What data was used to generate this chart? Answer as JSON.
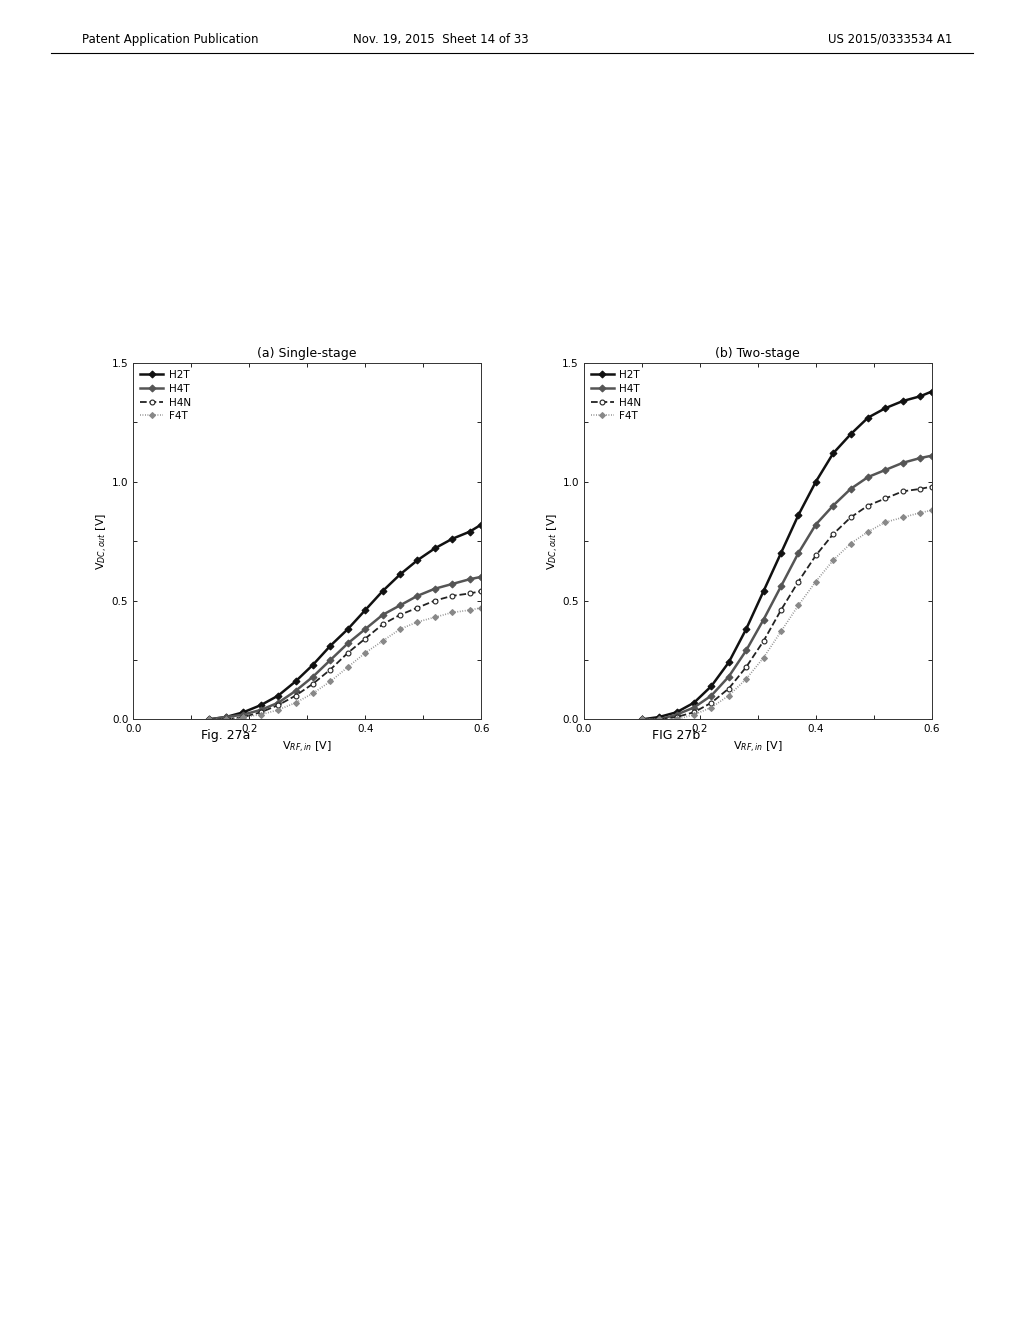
{
  "title_a": "(a) Single-stage",
  "title_b": "(b) Two-stage",
  "xlabel": "V$_{RF,in}$ [V]",
  "ylabel": "V$_{DC,out}$ [V]",
  "xlim": [
    0,
    0.6
  ],
  "ylim": [
    0,
    1.5
  ],
  "xticks": [
    0,
    0.2,
    0.4,
    0.6
  ],
  "yticks": [
    0,
    0.5,
    1,
    1.5
  ],
  "fig_caption_a": "Fig. 27a",
  "fig_caption_b": "FIG 27b",
  "header_left": "Patent Application Publication",
  "header_mid": "Nov. 19, 2015  Sheet 14 of 33",
  "header_right": "US 2015/0333534 A1",
  "series": [
    {
      "label": "H2T",
      "color": "#111111",
      "linestyle": "-",
      "marker": "D",
      "markersize": 3.5,
      "linewidth": 1.8
    },
    {
      "label": "H4T",
      "color": "#555555",
      "linestyle": "-",
      "marker": "D",
      "markersize": 3.5,
      "linewidth": 1.8
    },
    {
      "label": "H4N",
      "color": "#222222",
      "linestyle": "--",
      "marker": "o",
      "markersize": 3.5,
      "linewidth": 1.3
    },
    {
      "label": "F4T",
      "color": "#888888",
      "linestyle": "-",
      "marker": "D",
      "markersize": 3.0,
      "linewidth": 1.2
    }
  ],
  "single_stage": {
    "H2T": {
      "x": [
        0.13,
        0.16,
        0.19,
        0.22,
        0.25,
        0.28,
        0.31,
        0.34,
        0.37,
        0.4,
        0.43,
        0.46,
        0.49,
        0.52,
        0.55,
        0.58,
        0.6
      ],
      "y": [
        0.0,
        0.01,
        0.03,
        0.06,
        0.1,
        0.16,
        0.23,
        0.31,
        0.38,
        0.46,
        0.54,
        0.61,
        0.67,
        0.72,
        0.76,
        0.79,
        0.82
      ]
    },
    "H4T": {
      "x": [
        0.13,
        0.16,
        0.19,
        0.22,
        0.25,
        0.28,
        0.31,
        0.34,
        0.37,
        0.4,
        0.43,
        0.46,
        0.49,
        0.52,
        0.55,
        0.58,
        0.6
      ],
      "y": [
        0.0,
        0.01,
        0.02,
        0.04,
        0.07,
        0.12,
        0.18,
        0.25,
        0.32,
        0.38,
        0.44,
        0.48,
        0.52,
        0.55,
        0.57,
        0.59,
        0.6
      ]
    },
    "H4N": {
      "x": [
        0.13,
        0.16,
        0.19,
        0.22,
        0.25,
        0.28,
        0.31,
        0.34,
        0.37,
        0.4,
        0.43,
        0.46,
        0.49,
        0.52,
        0.55,
        0.58,
        0.6
      ],
      "y": [
        0.0,
        0.0,
        0.01,
        0.03,
        0.06,
        0.1,
        0.15,
        0.21,
        0.28,
        0.34,
        0.4,
        0.44,
        0.47,
        0.5,
        0.52,
        0.53,
        0.54
      ]
    },
    "F4T": {
      "x": [
        0.13,
        0.16,
        0.19,
        0.22,
        0.25,
        0.28,
        0.31,
        0.34,
        0.37,
        0.4,
        0.43,
        0.46,
        0.49,
        0.52,
        0.55,
        0.58,
        0.6
      ],
      "y": [
        0.0,
        0.0,
        0.01,
        0.02,
        0.04,
        0.07,
        0.11,
        0.16,
        0.22,
        0.28,
        0.33,
        0.38,
        0.41,
        0.43,
        0.45,
        0.46,
        0.47
      ]
    }
  },
  "two_stage": {
    "H2T": {
      "x": [
        0.1,
        0.13,
        0.16,
        0.19,
        0.22,
        0.25,
        0.28,
        0.31,
        0.34,
        0.37,
        0.4,
        0.43,
        0.46,
        0.49,
        0.52,
        0.55,
        0.58,
        0.6
      ],
      "y": [
        0.0,
        0.01,
        0.03,
        0.07,
        0.14,
        0.24,
        0.38,
        0.54,
        0.7,
        0.86,
        1.0,
        1.12,
        1.2,
        1.27,
        1.31,
        1.34,
        1.36,
        1.38
      ]
    },
    "H4T": {
      "x": [
        0.1,
        0.13,
        0.16,
        0.19,
        0.22,
        0.25,
        0.28,
        0.31,
        0.34,
        0.37,
        0.4,
        0.43,
        0.46,
        0.49,
        0.52,
        0.55,
        0.58,
        0.6
      ],
      "y": [
        0.0,
        0.0,
        0.02,
        0.05,
        0.1,
        0.18,
        0.29,
        0.42,
        0.56,
        0.7,
        0.82,
        0.9,
        0.97,
        1.02,
        1.05,
        1.08,
        1.1,
        1.11
      ]
    },
    "H4N": {
      "x": [
        0.1,
        0.13,
        0.16,
        0.19,
        0.22,
        0.25,
        0.28,
        0.31,
        0.34,
        0.37,
        0.4,
        0.43,
        0.46,
        0.49,
        0.52,
        0.55,
        0.58,
        0.6
      ],
      "y": [
        0.0,
        0.0,
        0.01,
        0.03,
        0.07,
        0.13,
        0.22,
        0.33,
        0.46,
        0.58,
        0.69,
        0.78,
        0.85,
        0.9,
        0.93,
        0.96,
        0.97,
        0.98
      ]
    },
    "F4T": {
      "x": [
        0.1,
        0.13,
        0.16,
        0.19,
        0.22,
        0.25,
        0.28,
        0.31,
        0.34,
        0.37,
        0.4,
        0.43,
        0.46,
        0.49,
        0.52,
        0.55,
        0.58,
        0.6
      ],
      "y": [
        0.0,
        0.0,
        0.0,
        0.02,
        0.05,
        0.1,
        0.17,
        0.26,
        0.37,
        0.48,
        0.58,
        0.67,
        0.74,
        0.79,
        0.83,
        0.85,
        0.87,
        0.88
      ]
    }
  }
}
